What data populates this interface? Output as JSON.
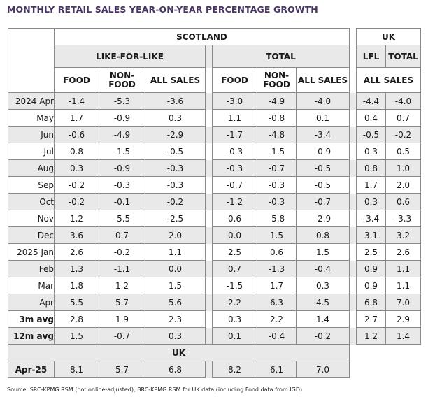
{
  "title": "MONTHLY RETAIL SALES YEAR-ON-YEAR PERCENTAGE GROWTH",
  "source": "Source: SRC-KPMG RSM (not online-adjusted), BRC-KPMG RSM for UK data (including Food data from IGD)",
  "headers": {
    "scotland": "SCOTLAND",
    "uk": "UK",
    "lfl": "LIKE-FOR-LIKE",
    "total": "TOTAL",
    "uk_lfl": "LFL",
    "uk_total": "TOTAL",
    "food": "FOOD",
    "nonfood_1": "NON-",
    "nonfood_2": "FOOD",
    "all_sales": "ALL SALES",
    "uk_all_sales": "ALL SALES"
  },
  "rows": [
    {
      "label": "2024 Apr",
      "v": [
        "-1.4",
        "-5.3",
        "-3.6",
        "-3.0",
        "-4.9",
        "-4.0",
        "-4.4",
        "-4.0"
      ]
    },
    {
      "label": "May",
      "v": [
        "1.7",
        "-0.9",
        "0.3",
        "1.1",
        "-0.8",
        "0.1",
        "0.4",
        "0.7"
      ]
    },
    {
      "label": "Jun",
      "v": [
        "-0.6",
        "-4.9",
        "-2.9",
        "-1.7",
        "-4.8",
        "-3.4",
        "-0.5",
        "-0.2"
      ]
    },
    {
      "label": "Jul",
      "v": [
        "0.8",
        "-1.5",
        "-0.5",
        "-0.3",
        "-1.5",
        "-0.9",
        "0.3",
        "0.5"
      ]
    },
    {
      "label": "Aug",
      "v": [
        "0.3",
        "-0.9",
        "-0.3",
        "-0.3",
        "-0.7",
        "-0.5",
        "0.8",
        "1.0"
      ]
    },
    {
      "label": "Sep",
      "v": [
        "-0.2",
        "-0.3",
        "-0.3",
        "-0.7",
        "-0.3",
        "-0.5",
        "1.7",
        "2.0"
      ]
    },
    {
      "label": "Oct",
      "v": [
        "-0.2",
        "-0.1",
        "-0.2",
        "-1.2",
        "-0.3",
        "-0.7",
        "0.3",
        "0.6"
      ]
    },
    {
      "label": "Nov",
      "v": [
        "1.2",
        "-5.5",
        "-2.5",
        "0.6",
        "-5.8",
        "-2.9",
        "-3.4",
        "-3.3"
      ]
    },
    {
      "label": "Dec",
      "v": [
        "3.6",
        "0.7",
        "2.0",
        "0.0",
        "1.5",
        "0.8",
        "3.1",
        "3.2"
      ]
    },
    {
      "label": "2025 Jan",
      "v": [
        "2.6",
        "-0.2",
        "1.1",
        "2.5",
        "0.6",
        "1.5",
        "2.5",
        "2.6"
      ]
    },
    {
      "label": "Feb",
      "v": [
        "1.3",
        "-1.1",
        "0.0",
        "0.7",
        "-1.3",
        "-0.4",
        "0.9",
        "1.1"
      ]
    },
    {
      "label": "Mar",
      "v": [
        "1.8",
        "1.2",
        "1.5",
        "-1.5",
        "1.7",
        "0.3",
        "0.9",
        "1.1"
      ]
    },
    {
      "label": "Apr",
      "v": [
        "5.5",
        "5.7",
        "5.6",
        "2.2",
        "6.3",
        "4.5",
        "6.8",
        "7.0"
      ]
    },
    {
      "label": "3m avg",
      "v": [
        "2.8",
        "1.9",
        "2.3",
        "0.3",
        "2.2",
        "1.4",
        "2.7",
        "2.9"
      ]
    },
    {
      "label": "12m avg",
      "v": [
        "1.5",
        "-0.7",
        "0.3",
        "0.1",
        "-0.4",
        "-0.2",
        "1.2",
        "1.4"
      ]
    }
  ],
  "uk_section": {
    "header": "UK",
    "row": {
      "label": "Apr-25",
      "v": [
        "8.1",
        "5.7",
        "6.8",
        "8.2",
        "6.1",
        "7.0"
      ]
    }
  }
}
